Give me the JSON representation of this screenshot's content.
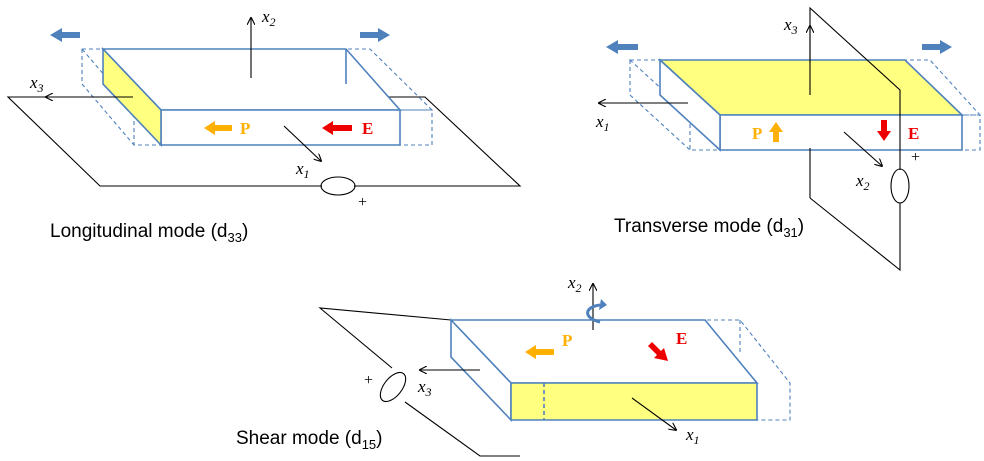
{
  "panels": {
    "longitudinal": {
      "caption": "Longitudinal mode (d",
      "caption_sub": "33",
      "caption_end": ")",
      "axes": [
        {
          "name": "x",
          "sub": "2"
        },
        {
          "name": "x",
          "sub": "3"
        },
        {
          "name": "x",
          "sub": "1"
        }
      ],
      "polarization_label": "P",
      "field_label": "E",
      "terminal_sign": "+"
    },
    "transverse": {
      "caption": "Transverse mode (d",
      "caption_sub": "31",
      "caption_end": ")",
      "axes": [
        {
          "name": "x",
          "sub": "3"
        },
        {
          "name": "x",
          "sub": "1"
        },
        {
          "name": "x",
          "sub": "2"
        }
      ],
      "polarization_label": "P",
      "field_label": "E",
      "terminal_sign": "+"
    },
    "shear": {
      "caption": "Shear mode (d",
      "caption_sub": "15",
      "caption_end": ")",
      "axes": [
        {
          "name": "x",
          "sub": "2"
        },
        {
          "name": "x",
          "sub": "3"
        },
        {
          "name": "x",
          "sub": "1"
        }
      ],
      "polarization_label": "P",
      "field_label": "E",
      "terminal_sign": "+"
    }
  },
  "colors": {
    "electrode": "#ffff80",
    "edge": "#4f81bd",
    "strain_arrow": "#4f81bd",
    "polarization_arrow": "#ffb000",
    "field_arrow": "#ee0000"
  }
}
